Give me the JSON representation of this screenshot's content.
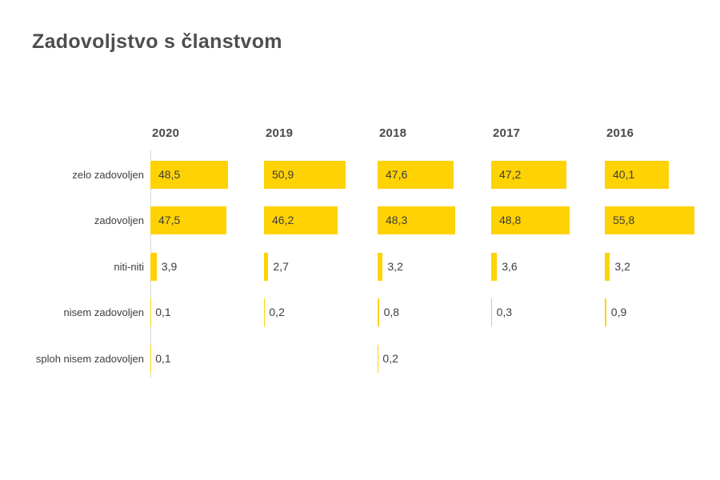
{
  "title": "Zadovoljstvo s članstvom",
  "colors": {
    "bar": "#FFD204",
    "axis_line": "#DBDBDB",
    "title_text": "#4E4E4E",
    "label_text": "#3E3E3E",
    "year_text": "#4A4A4A",
    "background": "#FFFFFF"
  },
  "chart_data": {
    "type": "bar",
    "orientation": "horizontal",
    "title": "Zadovoljstvo s članstvom",
    "xlabel": "",
    "ylabel": "",
    "xlim": [
      0,
      70
    ],
    "grid": false,
    "legend_position": "none",
    "categories": [
      "zelo zadovoljen",
      "zadovoljen",
      "niti-niti",
      "nisem zadovoljen",
      "sploh nisem zadovoljen"
    ],
    "series": [
      {
        "name": "2020",
        "values": [
          48.5,
          47.5,
          3.9,
          0.1,
          0.1
        ],
        "labels": [
          "48,5",
          "47,5",
          "3,9",
          "0,1",
          "0,1"
        ]
      },
      {
        "name": "2019",
        "values": [
          50.9,
          46.2,
          2.7,
          0.2,
          null
        ],
        "labels": [
          "50,9",
          "46,2",
          "2,7",
          "0,2",
          ""
        ]
      },
      {
        "name": "2018",
        "values": [
          47.6,
          48.3,
          3.2,
          0.8,
          0.2
        ],
        "labels": [
          "47,6",
          "48,3",
          "3,2",
          "0,8",
          "0,2"
        ]
      },
      {
        "name": "2017",
        "values": [
          47.2,
          48.8,
          3.6,
          0.3,
          null
        ],
        "labels": [
          "47,2",
          "48,8",
          "3,6",
          "0,3",
          ""
        ]
      },
      {
        "name": "2016",
        "values": [
          40.1,
          55.8,
          3.2,
          0.9,
          null
        ],
        "labels": [
          "40,1",
          "55,8",
          "3,2",
          "0,9",
          ""
        ]
      }
    ],
    "notes": "Only the first (2020) facet column shows a vertical axis line"
  }
}
